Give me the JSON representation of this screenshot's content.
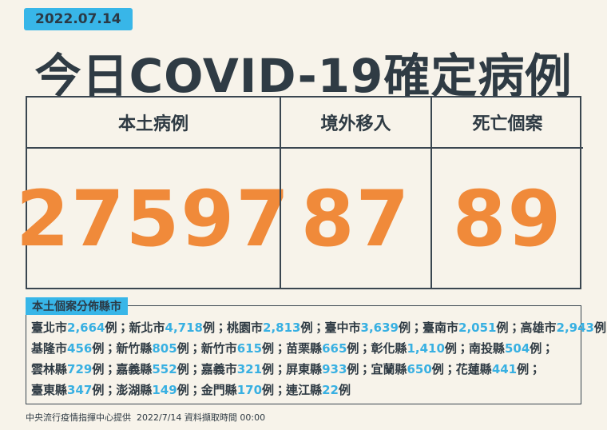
{
  "header": {
    "date": "2022.07.14",
    "title": "今日COVID-19確定病例"
  },
  "summary": {
    "columns": [
      {
        "label": "本土病例",
        "value": 27597
      },
      {
        "label": "境外移入",
        "value": 87
      },
      {
        "label": "死亡個案",
        "value": 89
      }
    ]
  },
  "distribution": {
    "label": "本土個案分佈縣市",
    "unit": "例",
    "separator": "；",
    "rows": [
      [
        {
          "name": "臺北市",
          "cases": "2,664"
        },
        {
          "name": "新北市",
          "cases": "4,718"
        },
        {
          "name": "桃園市",
          "cases": "2,813"
        },
        {
          "name": "臺中市",
          "cases": "3,639"
        },
        {
          "name": "臺南市",
          "cases": "2,051"
        },
        {
          "name": "高雄市",
          "cases": "2,943"
        }
      ],
      [
        {
          "name": "基隆市",
          "cases": "456"
        },
        {
          "name": "新竹縣",
          "cases": "805"
        },
        {
          "name": "新竹市",
          "cases": "615"
        },
        {
          "name": "苗栗縣",
          "cases": "665"
        },
        {
          "name": "彰化縣",
          "cases": "1,410"
        },
        {
          "name": "南投縣",
          "cases": "504"
        }
      ],
      [
        {
          "name": "雲林縣",
          "cases": "729"
        },
        {
          "name": "嘉義縣",
          "cases": "552"
        },
        {
          "name": "嘉義市",
          "cases": "321"
        },
        {
          "name": "屏東縣",
          "cases": "933"
        },
        {
          "name": "宜蘭縣",
          "cases": "650"
        },
        {
          "name": "花蓮縣",
          "cases": "441"
        }
      ],
      [
        {
          "name": "臺東縣",
          "cases": "347"
        },
        {
          "name": "澎湖縣",
          "cases": "149"
        },
        {
          "name": "金門縣",
          "cases": "170"
        },
        {
          "name": "連江縣",
          "cases": "22"
        }
      ]
    ]
  },
  "footer": {
    "source": "中央流行疫情指揮中心提供",
    "timestamp": "2022/7/14 資料擷取時間 00:00"
  }
}
